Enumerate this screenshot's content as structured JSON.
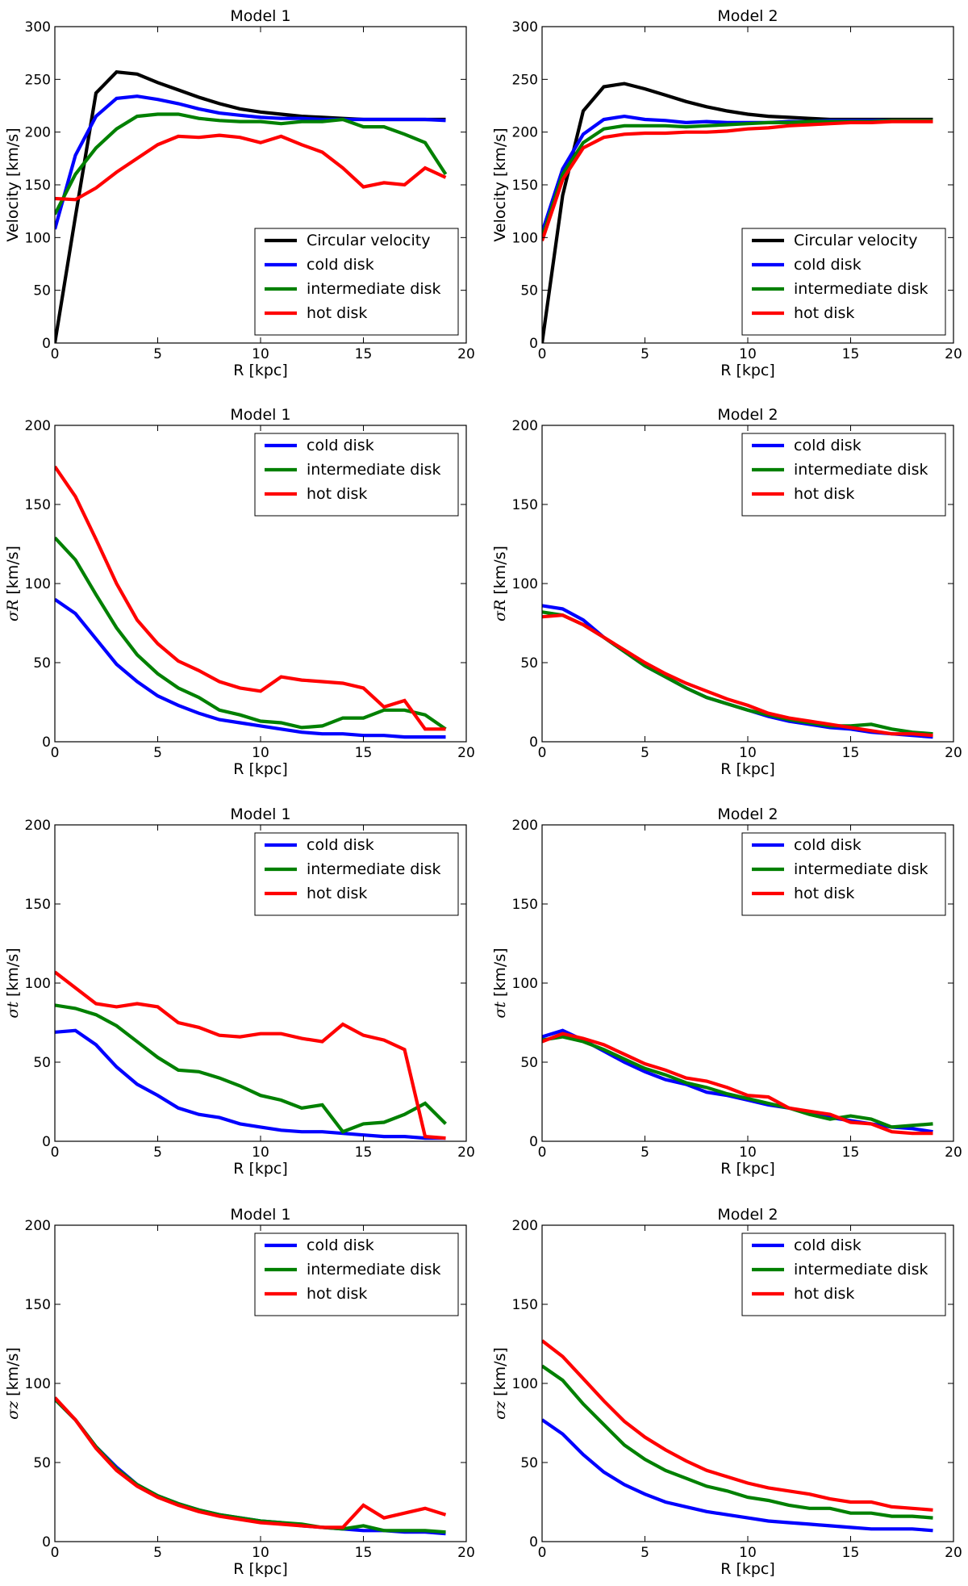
{
  "chart_data": [
    {
      "type": "line",
      "title": "Model 1",
      "xlabel": "R [kpc]",
      "ylabel": {
        "symbol": "",
        "unit": "Velocity [km/s]"
      },
      "xlim": [
        0,
        20
      ],
      "ylim": [
        0,
        300
      ],
      "xticks": [
        0,
        5,
        10,
        15,
        20
      ],
      "yticks": [
        0,
        50,
        100,
        150,
        200,
        250,
        300
      ],
      "legend_loc": "lower-right",
      "x": [
        0,
        1,
        2,
        3,
        4,
        5,
        6,
        7,
        8,
        9,
        10,
        11,
        12,
        13,
        14,
        15,
        16,
        17,
        18,
        19
      ],
      "series": [
        {
          "name": "Circular velocity",
          "color": "#000000",
          "values": [
            0,
            120,
            237,
            257,
            255,
            247,
            240,
            233,
            227,
            222,
            219,
            217,
            215,
            214,
            213,
            212,
            212,
            212,
            212,
            212
          ]
        },
        {
          "name": "cold disk",
          "color": "#0000ff",
          "values": [
            108,
            178,
            215,
            232,
            234,
            231,
            227,
            222,
            218,
            216,
            214,
            213,
            213,
            212,
            212,
            212,
            212,
            212,
            212,
            211
          ]
        },
        {
          "name": "intermediate disk",
          "color": "#008000",
          "values": [
            122,
            160,
            185,
            203,
            215,
            217,
            217,
            213,
            211,
            210,
            210,
            208,
            210,
            210,
            212,
            205,
            205,
            198,
            190,
            160
          ]
        },
        {
          "name": "hot disk",
          "color": "#ff0000",
          "values": [
            137,
            136,
            147,
            162,
            175,
            188,
            196,
            195,
            197,
            195,
            190,
            196,
            188,
            181,
            166,
            148,
            152,
            150,
            166,
            157
          ]
        }
      ]
    },
    {
      "type": "line",
      "title": "Model 2",
      "xlabel": "R [kpc]",
      "ylabel": {
        "symbol": "",
        "unit": "Velocity [km/s]"
      },
      "xlim": [
        0,
        20
      ],
      "ylim": [
        0,
        300
      ],
      "xticks": [
        0,
        5,
        10,
        15,
        20
      ],
      "yticks": [
        0,
        50,
        100,
        150,
        200,
        250,
        300
      ],
      "legend_loc": "lower-right",
      "x": [
        0,
        1,
        2,
        3,
        4,
        5,
        6,
        7,
        8,
        9,
        10,
        11,
        12,
        13,
        14,
        15,
        16,
        17,
        18,
        19
      ],
      "series": [
        {
          "name": "Circular velocity",
          "color": "#000000",
          "values": [
            0,
            140,
            220,
            243,
            246,
            241,
            235,
            229,
            224,
            220,
            217,
            215,
            214,
            213,
            212,
            212,
            212,
            212,
            212,
            212
          ]
        },
        {
          "name": "cold disk",
          "color": "#0000ff",
          "values": [
            105,
            165,
            198,
            212,
            215,
            212,
            211,
            209,
            210,
            209,
            209,
            209,
            210,
            210,
            211,
            211,
            211,
            211,
            211,
            211
          ]
        },
        {
          "name": "intermediate disk",
          "color": "#008000",
          "values": [
            100,
            160,
            190,
            203,
            206,
            206,
            206,
            205,
            206,
            207,
            208,
            209,
            209,
            210,
            210,
            210,
            210,
            211,
            211,
            211
          ]
        },
        {
          "name": "hot disk",
          "color": "#ff0000",
          "values": [
            97,
            155,
            185,
            195,
            198,
            199,
            199,
            200,
            200,
            201,
            203,
            204,
            206,
            207,
            208,
            209,
            209,
            210,
            210,
            210
          ]
        }
      ]
    },
    {
      "type": "line",
      "title": "Model 1",
      "xlabel": "R [kpc]",
      "ylabel": {
        "symbol": "σR",
        "unit": " [km/s]"
      },
      "xlim": [
        0,
        20
      ],
      "ylim": [
        0,
        200
      ],
      "xticks": [
        0,
        5,
        10,
        15,
        20
      ],
      "yticks": [
        0,
        50,
        100,
        150,
        200
      ],
      "legend_loc": "upper-right",
      "x": [
        0,
        1,
        2,
        3,
        4,
        5,
        6,
        7,
        8,
        9,
        10,
        11,
        12,
        13,
        14,
        15,
        16,
        17,
        18,
        19
      ],
      "series": [
        {
          "name": "cold disk",
          "color": "#0000ff",
          "values": [
            90,
            81,
            65,
            49,
            38,
            29,
            23,
            18,
            14,
            12,
            10,
            8,
            6,
            5,
            5,
            4,
            4,
            3,
            3,
            3
          ]
        },
        {
          "name": "intermediate disk",
          "color": "#008000",
          "values": [
            129,
            115,
            93,
            72,
            55,
            43,
            34,
            28,
            20,
            17,
            13,
            12,
            9,
            10,
            15,
            15,
            20,
            20,
            17,
            8
          ]
        },
        {
          "name": "hot disk",
          "color": "#ff0000",
          "values": [
            174,
            155,
            128,
            100,
            77,
            62,
            51,
            45,
            38,
            34,
            32,
            41,
            39,
            38,
            37,
            34,
            22,
            26,
            8,
            8
          ]
        }
      ]
    },
    {
      "type": "line",
      "title": "Model 2",
      "xlabel": "R [kpc]",
      "ylabel": {
        "symbol": "σR",
        "unit": " [km/s]"
      },
      "xlim": [
        0,
        20
      ],
      "ylim": [
        0,
        200
      ],
      "xticks": [
        0,
        5,
        10,
        15,
        20
      ],
      "yticks": [
        0,
        50,
        100,
        150,
        200
      ],
      "legend_loc": "upper-right",
      "x": [
        0,
        1,
        2,
        3,
        4,
        5,
        6,
        7,
        8,
        9,
        10,
        11,
        12,
        13,
        14,
        15,
        16,
        17,
        18,
        19
      ],
      "series": [
        {
          "name": "cold disk",
          "color": "#0000ff",
          "values": [
            86,
            84,
            77,
            66,
            57,
            48,
            41,
            34,
            28,
            24,
            20,
            16,
            13,
            11,
            9,
            8,
            6,
            5,
            4,
            3
          ]
        },
        {
          "name": "intermediate disk",
          "color": "#008000",
          "values": [
            82,
            80,
            74,
            66,
            57,
            48,
            41,
            34,
            28,
            24,
            20,
            17,
            14,
            12,
            10,
            10,
            11,
            8,
            6,
            5
          ]
        },
        {
          "name": "hot disk",
          "color": "#ff0000",
          "values": [
            79,
            80,
            74,
            66,
            58,
            50,
            43,
            37,
            32,
            27,
            23,
            18,
            15,
            13,
            11,
            9,
            7,
            5,
            5,
            4
          ]
        }
      ]
    },
    {
      "type": "line",
      "title": "Model 1",
      "xlabel": "R [kpc]",
      "ylabel": {
        "symbol": "σt",
        "unit": " [km/s]"
      },
      "xlim": [
        0,
        20
      ],
      "ylim": [
        0,
        200
      ],
      "xticks": [
        0,
        5,
        10,
        15,
        20
      ],
      "yticks": [
        0,
        50,
        100,
        150,
        200
      ],
      "legend_loc": "upper-right",
      "x": [
        0,
        1,
        2,
        3,
        4,
        5,
        6,
        7,
        8,
        9,
        10,
        11,
        12,
        13,
        14,
        15,
        16,
        17,
        18,
        19
      ],
      "series": [
        {
          "name": "cold disk",
          "color": "#0000ff",
          "values": [
            69,
            70,
            61,
            47,
            36,
            29,
            21,
            17,
            15,
            11,
            9,
            7,
            6,
            6,
            5,
            4,
            3,
            3,
            2,
            2
          ]
        },
        {
          "name": "intermediate disk",
          "color": "#008000",
          "values": [
            86,
            84,
            80,
            73,
            63,
            53,
            45,
            44,
            40,
            35,
            29,
            26,
            21,
            23,
            6,
            11,
            12,
            17,
            24,
            11
          ]
        },
        {
          "name": "hot disk",
          "color": "#ff0000",
          "values": [
            107,
            97,
            87,
            85,
            87,
            85,
            75,
            72,
            67,
            66,
            68,
            68,
            65,
            63,
            74,
            67,
            64,
            58,
            3,
            2
          ]
        }
      ]
    },
    {
      "type": "line",
      "title": "Model 2",
      "xlabel": "R [kpc]",
      "ylabel": {
        "symbol": "σt",
        "unit": " [km/s]"
      },
      "xlim": [
        0,
        20
      ],
      "ylim": [
        0,
        200
      ],
      "xticks": [
        0,
        5,
        10,
        15,
        20
      ],
      "yticks": [
        0,
        50,
        100,
        150,
        200
      ],
      "legend_loc": "upper-right",
      "x": [
        0,
        1,
        2,
        3,
        4,
        5,
        6,
        7,
        8,
        9,
        10,
        11,
        12,
        13,
        14,
        15,
        16,
        17,
        18,
        19
      ],
      "series": [
        {
          "name": "cold disk",
          "color": "#0000ff",
          "values": [
            66,
            70,
            64,
            57,
            50,
            44,
            39,
            36,
            31,
            29,
            26,
            23,
            21,
            18,
            15,
            13,
            11,
            9,
            8,
            6
          ]
        },
        {
          "name": "intermediate disk",
          "color": "#008000",
          "values": [
            64,
            66,
            63,
            58,
            52,
            46,
            42,
            37,
            34,
            30,
            27,
            24,
            21,
            17,
            14,
            16,
            14,
            9,
            10,
            11
          ]
        },
        {
          "name": "hot disk",
          "color": "#ff0000",
          "values": [
            63,
            68,
            65,
            61,
            55,
            49,
            45,
            40,
            38,
            34,
            29,
            28,
            21,
            19,
            17,
            12,
            11,
            6,
            5,
            5
          ]
        }
      ]
    },
    {
      "type": "line",
      "title": "Model 1",
      "xlabel": "R [kpc]",
      "ylabel": {
        "symbol": "σz",
        "unit": " [km/s]"
      },
      "xlim": [
        0,
        20
      ],
      "ylim": [
        0,
        200
      ],
      "xticks": [
        0,
        5,
        10,
        15,
        20
      ],
      "yticks": [
        0,
        50,
        100,
        150,
        200
      ],
      "legend_loc": "upper-right",
      "x": [
        0,
        1,
        2,
        3,
        4,
        5,
        6,
        7,
        8,
        9,
        10,
        11,
        12,
        13,
        14,
        15,
        16,
        17,
        18,
        19
      ],
      "series": [
        {
          "name": "cold disk",
          "color": "#0000ff",
          "values": [
            90,
            77,
            60,
            47,
            36,
            29,
            24,
            20,
            17,
            15,
            13,
            12,
            10,
            9,
            8,
            7,
            7,
            6,
            6,
            5
          ]
        },
        {
          "name": "intermediate disk",
          "color": "#008000",
          "values": [
            90,
            77,
            60,
            46,
            36,
            29,
            24,
            20,
            17,
            15,
            13,
            12,
            11,
            9,
            8,
            10,
            7,
            7,
            7,
            6
          ]
        },
        {
          "name": "hot disk",
          "color": "#ff0000",
          "values": [
            91,
            77,
            59,
            45,
            35,
            28,
            23,
            19,
            16,
            14,
            12,
            11,
            10,
            9,
            9,
            23,
            15,
            18,
            21,
            17
          ]
        }
      ]
    },
    {
      "type": "line",
      "title": "Model 2",
      "xlabel": "R [kpc]",
      "ylabel": {
        "symbol": "σz",
        "unit": " [km/s]"
      },
      "xlim": [
        0,
        20
      ],
      "ylim": [
        0,
        200
      ],
      "xticks": [
        0,
        5,
        10,
        15,
        20
      ],
      "yticks": [
        0,
        50,
        100,
        150,
        200
      ],
      "legend_loc": "upper-right",
      "x": [
        0,
        1,
        2,
        3,
        4,
        5,
        6,
        7,
        8,
        9,
        10,
        11,
        12,
        13,
        14,
        15,
        16,
        17,
        18,
        19
      ],
      "series": [
        {
          "name": "cold disk",
          "color": "#0000ff",
          "values": [
            77,
            68,
            55,
            44,
            36,
            30,
            25,
            22,
            19,
            17,
            15,
            13,
            12,
            11,
            10,
            9,
            8,
            8,
            8,
            7
          ]
        },
        {
          "name": "intermediate disk",
          "color": "#008000",
          "values": [
            111,
            102,
            87,
            74,
            61,
            52,
            45,
            40,
            35,
            32,
            28,
            26,
            23,
            21,
            21,
            18,
            18,
            16,
            16,
            15
          ]
        },
        {
          "name": "hot disk",
          "color": "#ff0000",
          "values": [
            127,
            117,
            103,
            89,
            76,
            66,
            58,
            51,
            45,
            41,
            37,
            34,
            32,
            30,
            27,
            25,
            25,
            22,
            21,
            20
          ]
        }
      ]
    }
  ]
}
